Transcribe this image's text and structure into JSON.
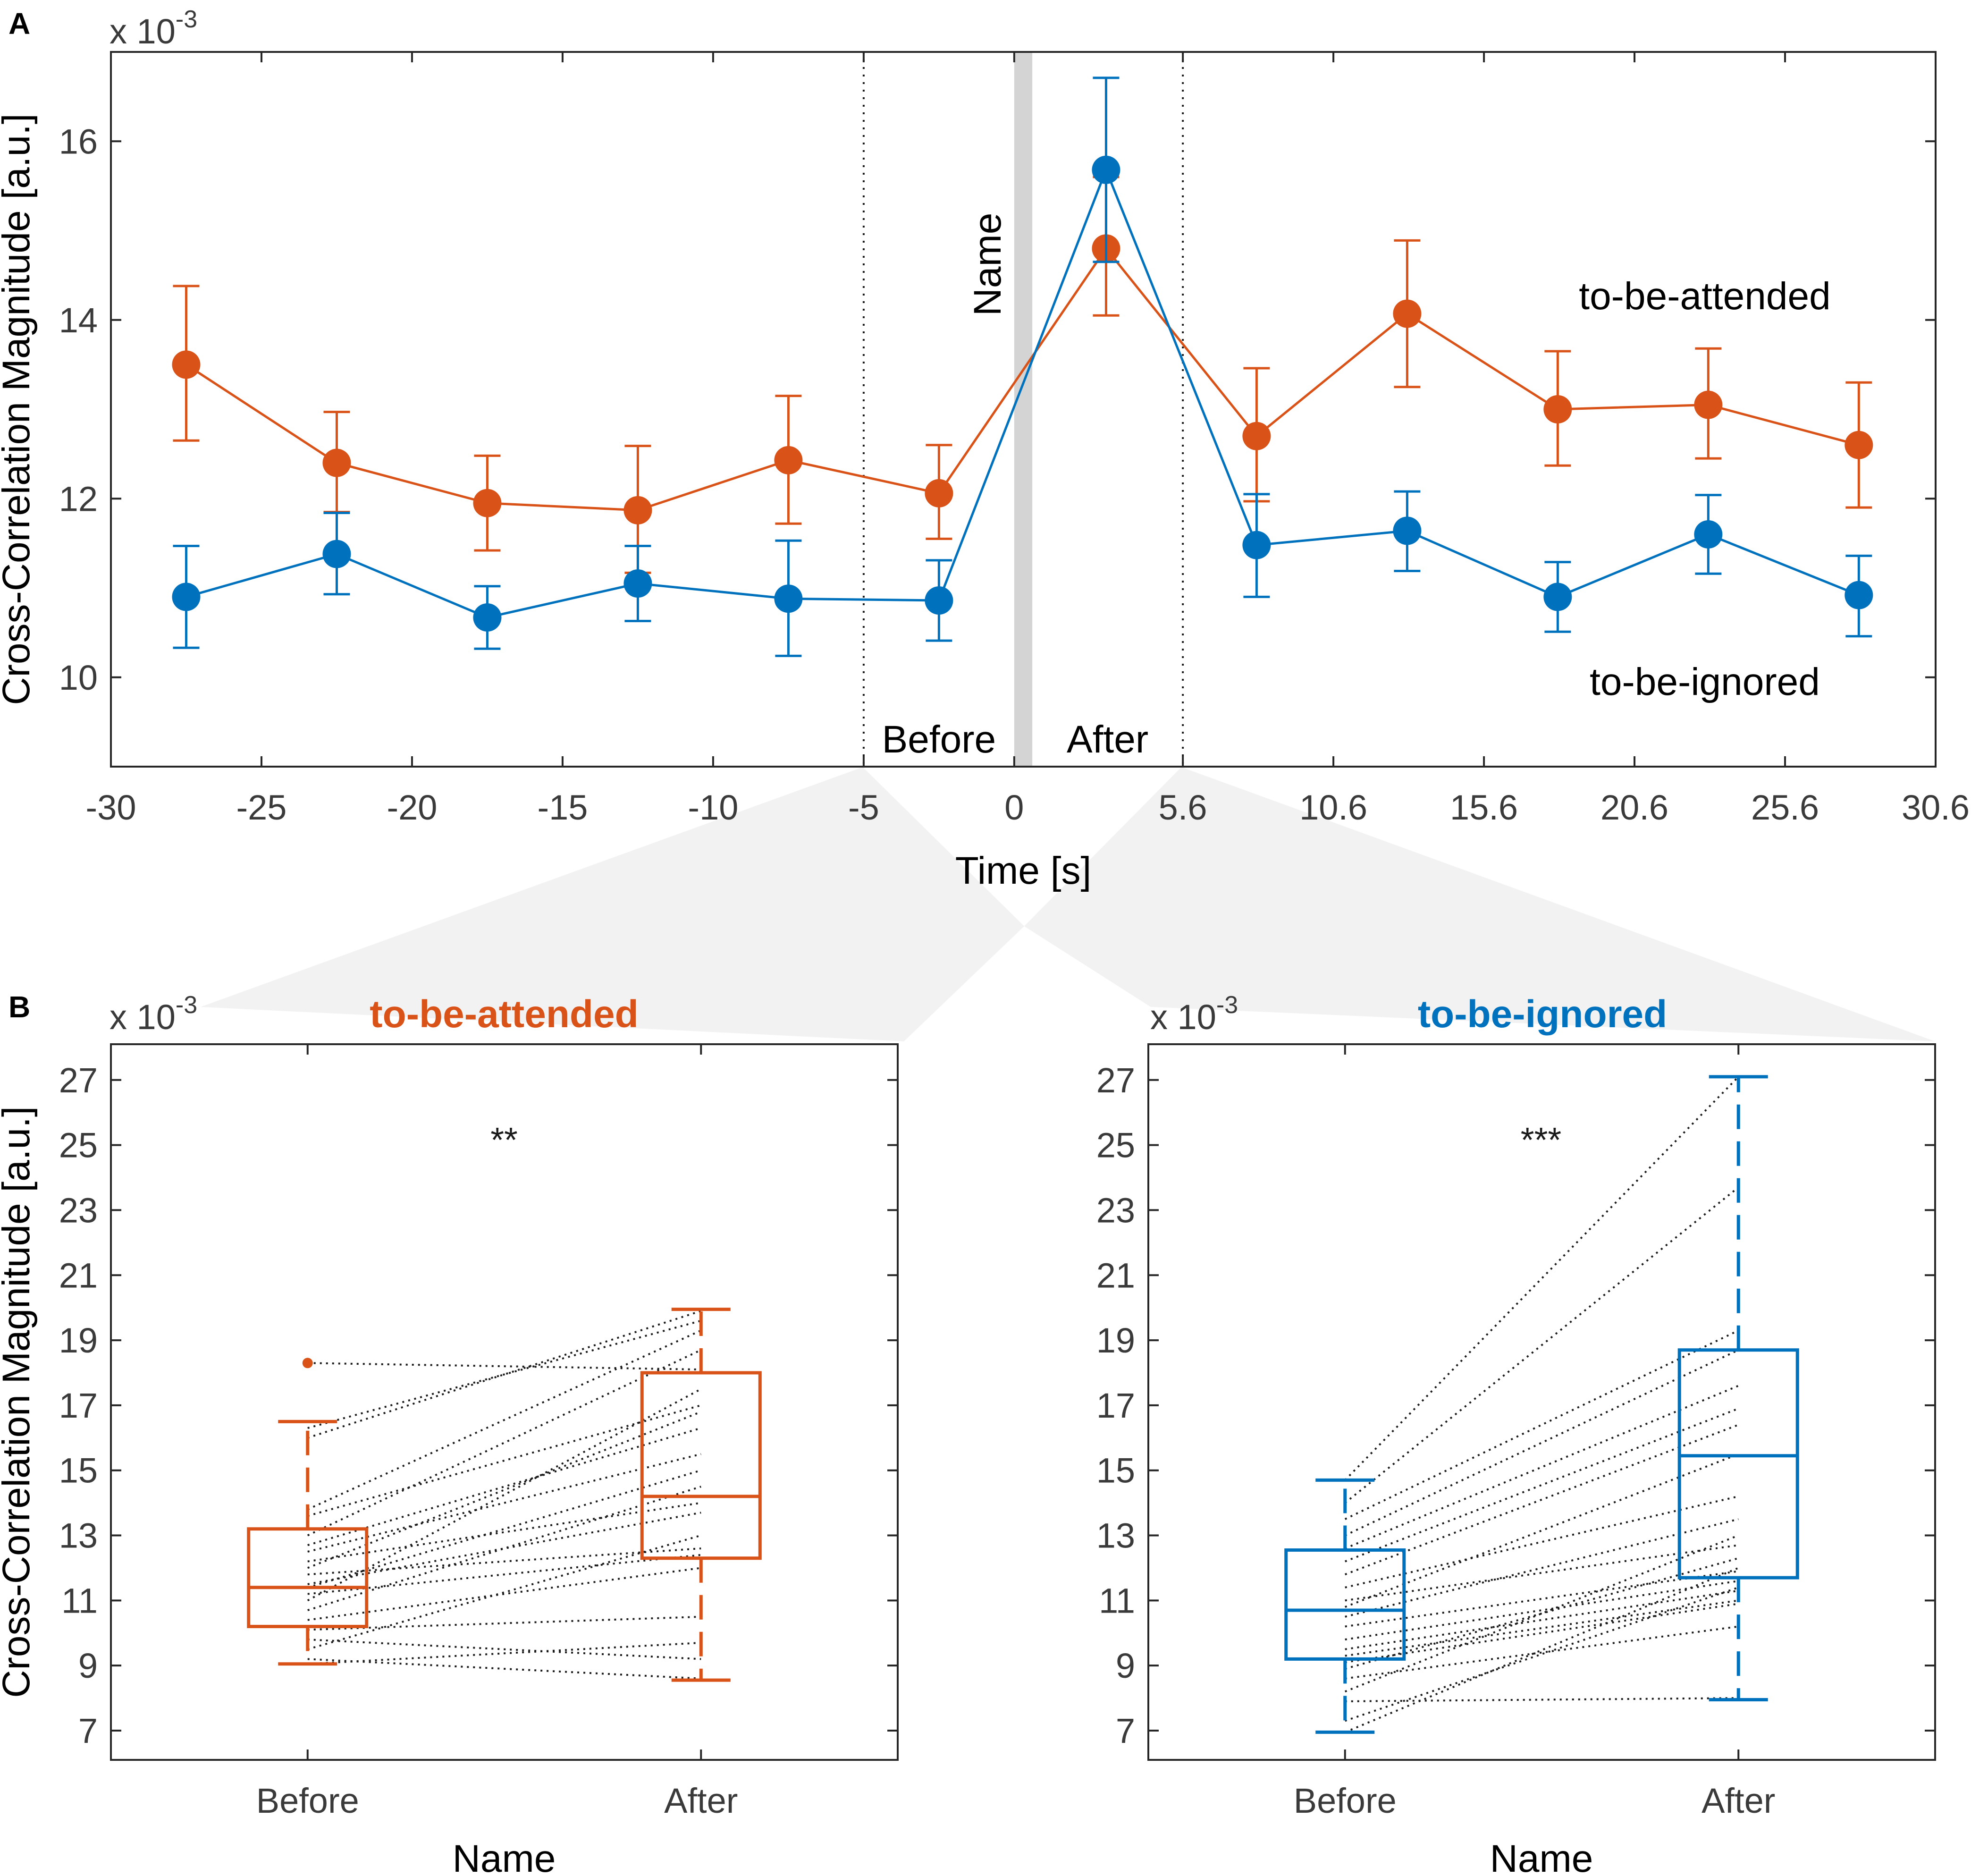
{
  "colors": {
    "attended": "#D95319",
    "ignored": "#0072BD",
    "annotation": "#9a9a9a",
    "name_bar": "#d4d4d4",
    "funnel": "#f2f2f2"
  },
  "chart_data": [
    {
      "type": "line",
      "panel_label": "A",
      "scale_label": "x 10",
      "scale_exponent": "-3",
      "xlabel": "Time [s]",
      "ylabel": "Cross-Correlation Magnitude [a.u.]",
      "xlim": [
        -30,
        30.6
      ],
      "ylim": [
        9,
        17
      ],
      "xticks": [
        -30,
        -25,
        -20,
        -15,
        -10,
        -5,
        0,
        5.6,
        10.6,
        15.6,
        20.6,
        25.6,
        30.6
      ],
      "xtick_labels": [
        "-30",
        "-25",
        "-20",
        "-15",
        "-10",
        "-5",
        "0",
        "5.6",
        "10.6",
        "15.6",
        "20.6",
        "25.6",
        "30.6"
      ],
      "yticks": [
        10,
        12,
        14,
        16
      ],
      "ytick_labels": [
        "10",
        "12",
        "14",
        "16"
      ],
      "x": [
        -27.5,
        -22.5,
        -17.5,
        -12.5,
        -7.5,
        -2.5,
        3.05,
        8.05,
        13.05,
        18.05,
        23.05,
        28.05
      ],
      "series": [
        {
          "name": "to-be-attended",
          "values": [
            13.5,
            12.4,
            11.95,
            11.87,
            12.43,
            12.06,
            14.8,
            12.7,
            14.07,
            13.0,
            13.05,
            12.6
          ],
          "err_low": [
            12.65,
            11.85,
            11.42,
            11.17,
            11.72,
            11.55,
            14.05,
            11.97,
            13.25,
            12.37,
            12.45,
            11.9
          ],
          "err_high": [
            14.38,
            12.97,
            12.48,
            12.59,
            13.15,
            12.6,
            15.6,
            13.46,
            14.89,
            13.65,
            13.68,
            13.3
          ]
        },
        {
          "name": "to-be-ignored",
          "values": [
            10.9,
            11.38,
            10.67,
            11.05,
            10.88,
            10.86,
            15.68,
            11.48,
            11.64,
            10.9,
            11.6,
            10.92
          ],
          "err_low": [
            10.33,
            10.93,
            10.32,
            10.63,
            10.24,
            10.41,
            14.65,
            10.9,
            11.19,
            10.51,
            11.16,
            10.46
          ],
          "err_high": [
            11.47,
            11.84,
            11.02,
            11.47,
            11.53,
            11.31,
            16.71,
            12.05,
            12.08,
            11.29,
            12.04,
            11.36
          ]
        }
      ],
      "annotations": {
        "name_onset": "Name",
        "window_before": "Before",
        "window_after": "After",
        "window_bounds": [
          -5,
          5.6
        ],
        "label_attended": "to-be-attended",
        "label_ignored": "to-be-ignored"
      }
    },
    {
      "type": "box",
      "panel_label": "B",
      "title": "to-be-attended",
      "scale_label": "x 10",
      "scale_exponent": "-3",
      "xlabel": "Name",
      "ylabel": "Cross-Correlation Magnitude [a.u.]",
      "categories": [
        "Before",
        "After"
      ],
      "ylim": [
        6.1,
        28.1
      ],
      "yticks": [
        7,
        9,
        11,
        13,
        15,
        17,
        19,
        21,
        23,
        25,
        27
      ],
      "ytick_labels": [
        "7",
        "9",
        "11",
        "13",
        "15",
        "17",
        "19",
        "21",
        "23",
        "25",
        "27"
      ],
      "significance": "**",
      "boxes": [
        {
          "category": "Before",
          "whisker_low": 9.05,
          "q1": 10.2,
          "median": 11.4,
          "q3": 13.2,
          "whisker_high": 16.5,
          "outliers": [
            18.3
          ]
        },
        {
          "category": "After",
          "whisker_low": 8.55,
          "q1": 12.3,
          "median": 14.2,
          "q3": 18.0,
          "whisker_high": 19.95,
          "outliers": []
        }
      ],
      "pairs": [
        [
          18.3,
          18.1
        ],
        [
          16.3,
          19.6
        ],
        [
          16.0,
          19.9
        ],
        [
          13.8,
          19.3
        ],
        [
          13.6,
          17.0
        ],
        [
          13.0,
          18.7
        ],
        [
          12.7,
          16.3
        ],
        [
          12.5,
          15.5
        ],
        [
          12.2,
          14.0
        ],
        [
          12.0,
          16.8
        ],
        [
          11.8,
          12.6
        ],
        [
          11.5,
          13.7
        ],
        [
          11.4,
          15.0
        ],
        [
          11.2,
          12.4
        ],
        [
          11.0,
          17.5
        ],
        [
          10.7,
          14.5
        ],
        [
          10.4,
          12.0
        ],
        [
          10.1,
          10.5
        ],
        [
          9.8,
          9.2
        ],
        [
          9.5,
          13.0
        ],
        [
          9.2,
          8.6
        ],
        [
          9.05,
          9.7
        ]
      ]
    },
    {
      "type": "box",
      "title": "to-be-ignored",
      "scale_label": "x 10",
      "scale_exponent": "-3",
      "xlabel": "Name",
      "categories": [
        "Before",
        "After"
      ],
      "ylim": [
        6.1,
        28.1
      ],
      "yticks": [
        7,
        9,
        11,
        13,
        15,
        17,
        19,
        21,
        23,
        25,
        27
      ],
      "ytick_labels": [
        "7",
        "9",
        "11",
        "13",
        "15",
        "17",
        "19",
        "21",
        "23",
        "25",
        "27"
      ],
      "significance": "***",
      "boxes": [
        {
          "category": "Before",
          "whisker_low": 6.95,
          "q1": 9.2,
          "median": 10.7,
          "q3": 12.55,
          "whisker_high": 14.7,
          "outliers": []
        },
        {
          "category": "After",
          "whisker_low": 7.95,
          "q1": 11.7,
          "median": 15.45,
          "q3": 18.7,
          "whisker_high": 27.1,
          "outliers": []
        }
      ],
      "pairs": [
        [
          14.7,
          27.1
        ],
        [
          14.0,
          23.7
        ],
        [
          13.5,
          19.3
        ],
        [
          13.0,
          18.7
        ],
        [
          12.6,
          17.6
        ],
        [
          12.2,
          16.9
        ],
        [
          11.8,
          16.4
        ],
        [
          11.4,
          14.2
        ],
        [
          11.0,
          12.7
        ],
        [
          10.8,
          15.5
        ],
        [
          10.5,
          13.5
        ],
        [
          10.2,
          11.9
        ],
        [
          9.8,
          11.6
        ],
        [
          9.5,
          11.3
        ],
        [
          9.3,
          11.0
        ],
        [
          9.1,
          10.9
        ],
        [
          8.9,
          12.3
        ],
        [
          8.6,
          10.2
        ],
        [
          8.2,
          13.0
        ],
        [
          7.9,
          8.0
        ],
        [
          7.3,
          11.4
        ],
        [
          6.95,
          12.0
        ]
      ]
    }
  ]
}
